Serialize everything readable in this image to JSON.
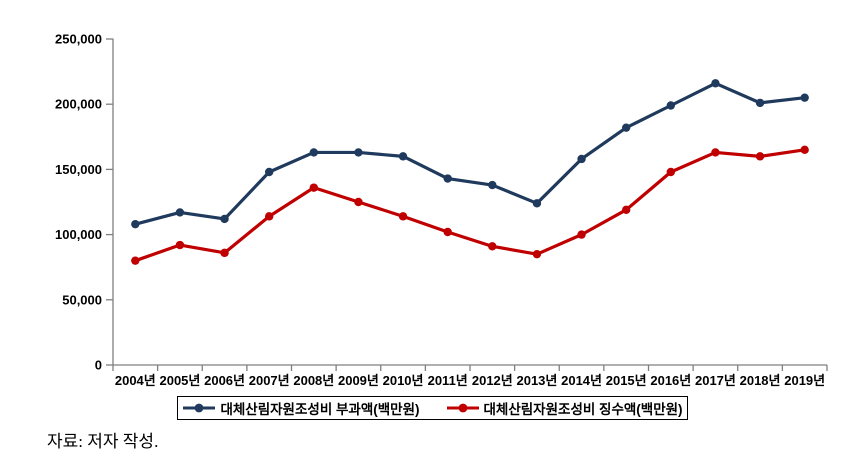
{
  "source_note": "자료: 저자 작성.",
  "colors": {
    "axis": "#7f7f7f",
    "text": "#000000",
    "background": "#ffffff",
    "series_levied": "#1f3a5c",
    "series_collected": "#c00000"
  },
  "chart_data": {
    "type": "line",
    "title": "",
    "xlabel": "",
    "ylabel": "",
    "categories": [
      "2004년",
      "2005년",
      "2006년",
      "2007년",
      "2008년",
      "2009년",
      "2010년",
      "2011년",
      "2012년",
      "2013년",
      "2014년",
      "2015년",
      "2016년",
      "2017년",
      "2018년",
      "2019년"
    ],
    "series": [
      {
        "name": "대체산림자원조성비 부과액(백만원)",
        "color": "#1f3a5c",
        "values": [
          108000,
          117000,
          112000,
          148000,
          163000,
          163000,
          160000,
          143000,
          138000,
          124000,
          158000,
          182000,
          199000,
          216000,
          201000,
          205000
        ]
      },
      {
        "name": "대체산림자원조성비 징수액(백만원)",
        "color": "#c00000",
        "values": [
          80000,
          92000,
          86000,
          114000,
          136000,
          125000,
          114000,
          102000,
          91000,
          85000,
          100000,
          119000,
          148000,
          163000,
          160000,
          165000
        ]
      }
    ],
    "ylim": [
      0,
      250000
    ],
    "y_tick_values": [
      0,
      50000,
      100000,
      150000,
      200000,
      250000
    ],
    "y_tick_labels": [
      "0",
      "50,000",
      "100,000",
      "150,000",
      "200,000",
      "250,000"
    ],
    "grid": false,
    "legend_position": "bottom"
  }
}
